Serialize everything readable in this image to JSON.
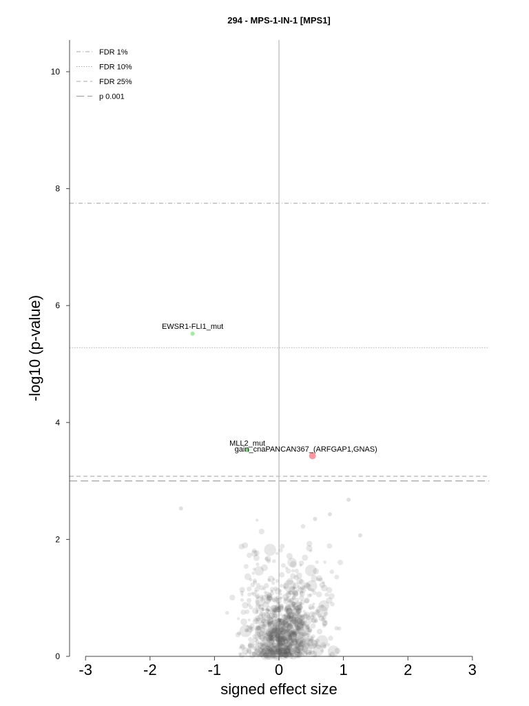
{
  "chart_data": {
    "type": "scatter",
    "title": "294 - MPS-1-IN-1 [MPS1]",
    "xlabel": "signed effect size",
    "ylabel": "-log10 (p-value)",
    "xlim": [
      -3.3,
      3.3
    ],
    "ylim": [
      0,
      10.5
    ],
    "xticks": [
      "-3",
      "-2",
      "-1",
      "0",
      "1",
      "2",
      "3"
    ],
    "yticks": [
      "0",
      "2",
      "4",
      "6",
      "8",
      "10"
    ],
    "grid": false,
    "legend_position": "top-left",
    "thresholds": [
      {
        "name": "FDR 1%",
        "y": 7.75,
        "style": "dash-dot",
        "color": "#aaaaaa"
      },
      {
        "name": "FDR 10%",
        "y": 5.28,
        "style": "dotted",
        "color": "#aaaaaa"
      },
      {
        "name": "FDR 25%",
        "y": 3.08,
        "style": "dashed",
        "color": "#aaaaaa"
      },
      {
        "name": "p 0.001",
        "y": 3.0,
        "style": "long-dash",
        "color": "#999999"
      }
    ],
    "highlighted": [
      {
        "label": "EWSR1-FLI1_mut",
        "x": -1.34,
        "y": 5.52,
        "color": "#90ee90",
        "size": 3
      },
      {
        "label": "MLL2_mut",
        "x": -0.49,
        "y": 3.53,
        "color": "#90ee90",
        "size": 3.5
      },
      {
        "label": "gain_cnaPANCAN367_(ARFGAP1,GNAS)",
        "x": 0.52,
        "y": 3.43,
        "color": "#ff8a94",
        "size": 5
      }
    ],
    "background_points": {
      "color": "#555555",
      "approx_count": 900,
      "x_range": [
        -1.5,
        1.3
      ],
      "y_range": [
        0,
        2.7
      ],
      "notable": [
        {
          "x": -1.52,
          "y": 2.53
        },
        {
          "x": 1.08,
          "y": 2.68
        },
        {
          "x": 1.26,
          "y": 2.07
        },
        {
          "x": 0.56,
          "y": 2.35
        },
        {
          "x": 0.79,
          "y": 2.43
        }
      ]
    }
  }
}
